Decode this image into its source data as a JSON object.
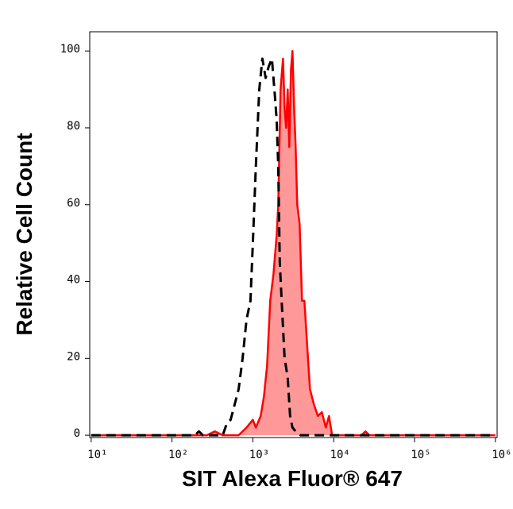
{
  "chart_data": {
    "type": "histogram-overlay",
    "x_label": "SIT Alexa Fluor® 647",
    "y_label": "Relative Cell Count",
    "x_scale": "log",
    "xlim": [
      9.6,
      1050000
    ],
    "ylim": [
      -0.6,
      105
    ],
    "xticks": [
      {
        "value": 10,
        "label": "10¹"
      },
      {
        "value": 100,
        "label": "10²"
      },
      {
        "value": 1000,
        "label": "10³"
      },
      {
        "value": 10000,
        "label": "10⁴"
      },
      {
        "value": 100000,
        "label": "10⁵"
      },
      {
        "value": 1000000,
        "label": "10⁶"
      }
    ],
    "yticks": [
      0,
      20,
      40,
      60,
      80,
      100
    ],
    "series": [
      {
        "color": "#ff0000",
        "fill": "#ff9999",
        "dashed": false,
        "x": [
          10,
          270,
          338,
          424,
          667,
          835,
          1000,
          1090,
          1250,
          1370,
          1500,
          1640,
          1800,
          1970,
          2060,
          2200,
          2360,
          2470,
          2580,
          2700,
          2820,
          2960,
          3090,
          3240,
          3380,
          3540,
          3790,
          4050,
          4340,
          4640,
          5080,
          5690,
          6370,
          7130,
          7980,
          8740,
          9560,
          22000,
          24700,
          27600,
          1000000
        ],
        "values": [
          0,
          0,
          1,
          0,
          0,
          2,
          4,
          2,
          5,
          10,
          18,
          35,
          42,
          52,
          60,
          90,
          98,
          85,
          80,
          90,
          75,
          95,
          100,
          85,
          75,
          60,
          55,
          35,
          35,
          25,
          12,
          8,
          5,
          6,
          2,
          5,
          0,
          0,
          1,
          0,
          0
        ]
      },
      {
        "color": "#000000",
        "fill": null,
        "dashed": true,
        "x": [
          10,
          192,
          215,
          241,
          424,
          475,
          531,
          595,
          667,
          746,
          835,
          935,
          1000,
          1090,
          1200,
          1310,
          1440,
          1570,
          1720,
          1880,
          1970,
          2060,
          2150,
          2310,
          2470,
          2700,
          2890,
          3090,
          3380,
          3870,
          1000000
        ],
        "values": [
          0,
          0,
          1,
          0,
          0,
          3,
          4,
          8,
          12,
          20,
          30,
          35,
          50,
          70,
          90,
          98,
          93,
          96,
          98,
          88,
          82,
          70,
          45,
          32,
          20,
          15,
          5,
          2,
          1,
          0,
          0
        ]
      }
    ]
  }
}
